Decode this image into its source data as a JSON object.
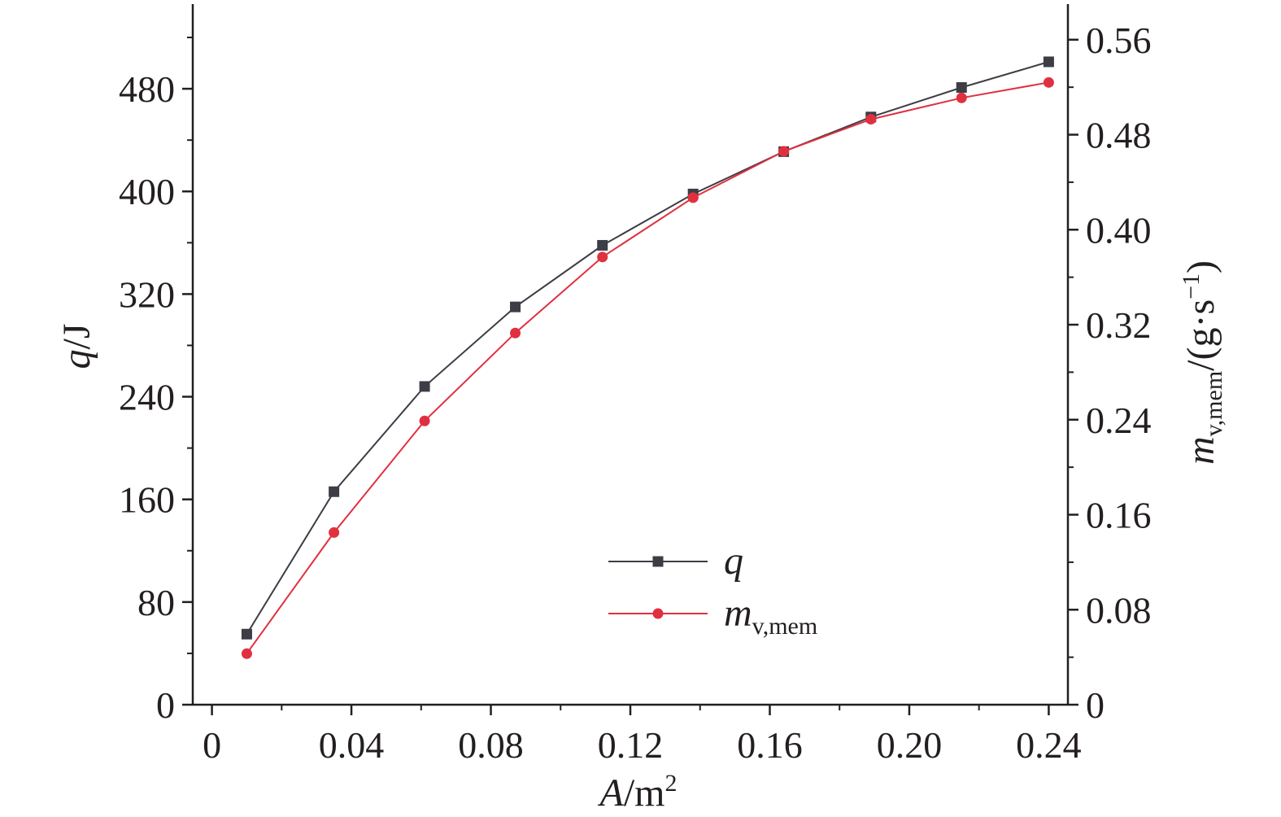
{
  "chart_data": {
    "type": "line",
    "x_axis": {
      "label_var": "A",
      "label_unit": "/m",
      "label_sup": "2",
      "range": [
        -0.0055,
        0.2455
      ],
      "ticks": [
        0,
        0.04,
        0.08,
        0.12,
        0.16,
        0.2,
        0.24
      ],
      "tick_labels": [
        "0",
        "0.04",
        "0.08",
        "0.12",
        "0.16",
        "0.20",
        "0.24"
      ]
    },
    "y_axis_left": {
      "label_var": "q",
      "label_unit": "/J",
      "range": [
        0,
        546
      ],
      "ticks": [
        0,
        80,
        160,
        240,
        320,
        400,
        480
      ],
      "tick_labels": [
        "0",
        "80",
        "160",
        "240",
        "320",
        "400",
        "480"
      ]
    },
    "y_axis_right": {
      "label_var": "m",
      "label_sub": "v,mem",
      "label_unit": "/(g·s",
      "label_sup": "−1",
      "label_close": ")",
      "range": [
        0,
        0.59
      ],
      "ticks": [
        0,
        0.08,
        0.16,
        0.24,
        0.32,
        0.4,
        0.48,
        0.56
      ],
      "tick_labels": [
        "0",
        "0.08",
        "0.16",
        "0.24",
        "0.32",
        "0.40",
        "0.48",
        "0.56"
      ]
    },
    "series": [
      {
        "name": "q",
        "axis": "left",
        "marker": "square",
        "color": "#3d3d45",
        "x": [
          0.01,
          0.035,
          0.061,
          0.087,
          0.112,
          0.138,
          0.164,
          0.189,
          0.215,
          0.24
        ],
        "y": [
          55,
          166,
          248,
          310,
          358,
          398,
          431,
          458,
          481,
          501
        ]
      },
      {
        "name": "m",
        "name_sub": "v,mem",
        "axis": "right",
        "marker": "circle",
        "color": "#e03040",
        "x": [
          0.01,
          0.035,
          0.061,
          0.087,
          0.112,
          0.138,
          0.164,
          0.189,
          0.215,
          0.24
        ],
        "y": [
          0.043,
          0.145,
          0.239,
          0.313,
          0.377,
          0.427,
          0.466,
          0.493,
          0.511,
          0.524
        ]
      }
    ],
    "legend": {
      "position": "center-bottom"
    },
    "grid": false
  }
}
